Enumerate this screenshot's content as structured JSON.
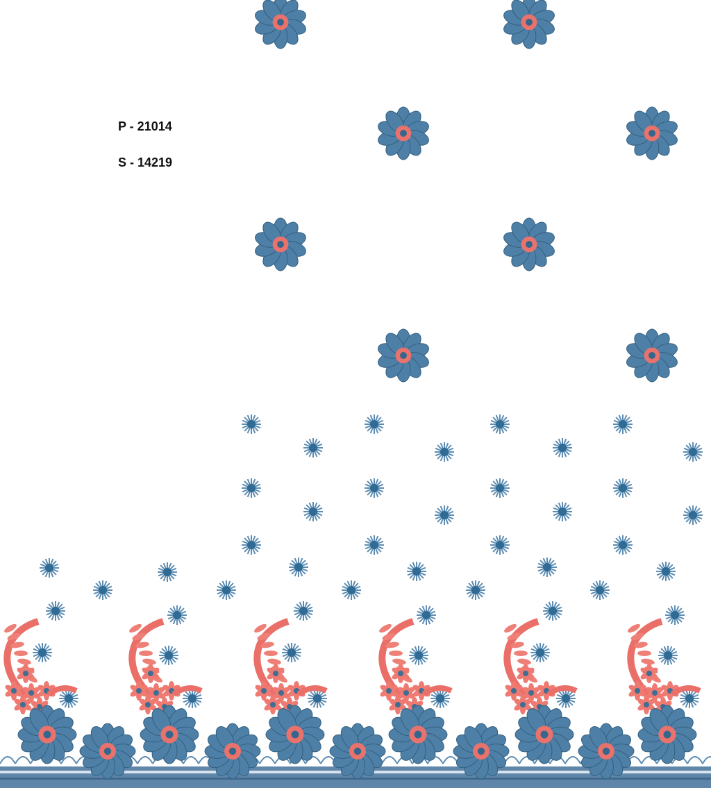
{
  "labels": {
    "p_code": "P - 21014",
    "s_code": "S - 14219"
  }
}
